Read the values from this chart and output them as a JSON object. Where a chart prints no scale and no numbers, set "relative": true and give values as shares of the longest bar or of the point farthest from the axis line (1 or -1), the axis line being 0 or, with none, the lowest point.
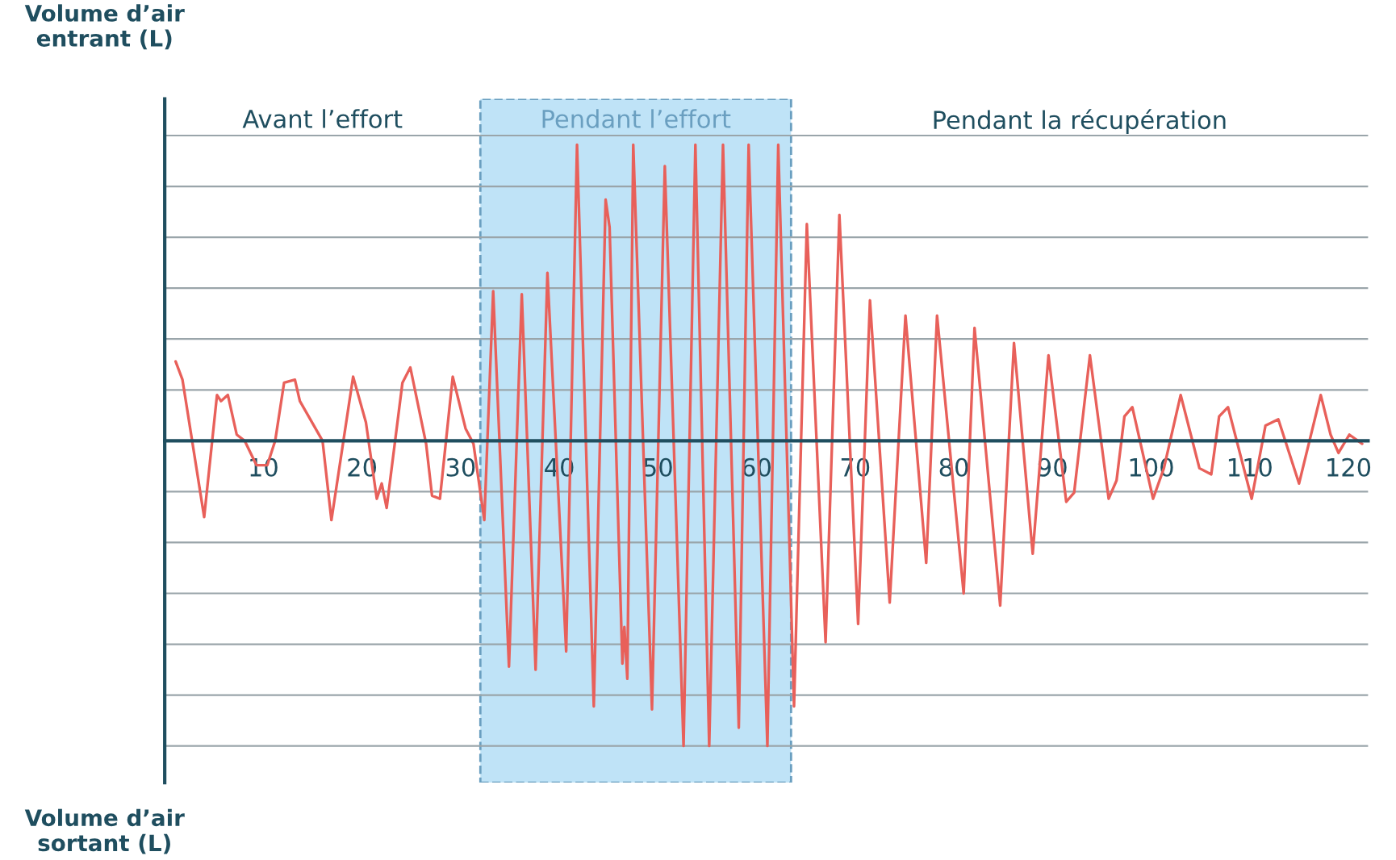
{
  "chart_data": {
    "type": "line",
    "relative": true,
    "ylabel": "Volume d’air\nentrant (L)",
    "annotations": [
      "Avant l’effort",
      "Pendant la récupération",
      "Volume d’air\nsortant (L)"
    ],
    "xlim": [
      0,
      122
    ],
    "xticks": [
      10,
      20,
      30,
      40,
      50,
      60,
      70,
      80,
      90,
      100,
      110,
      120
    ],
    "grid": "y",
    "tick_labels": "x",
    "line_style": "solid",
    "bands": [
      {
        "axis": "x",
        "from": 32,
        "to": 63.5,
        "label": "Pendant l’effort",
        "color": "#bfe3f7"
      }
    ],
    "series": [
      {
        "color": "#e8605a",
        "x": [
          1.1,
          1.8,
          4.0,
          5.3,
          5.7,
          6.4,
          7.3,
          8.1,
          9.3,
          10.4,
          11.2,
          12.1,
          13.2,
          13.7,
          16,
          16.9,
          19.1,
          20.4,
          21.5,
          22,
          22.5,
          24.1,
          24.9,
          26.5,
          27.1,
          27.9,
          29.2,
          30.5,
          31.3,
          32.4,
          33.3,
          34.9,
          36.2,
          37.6,
          38.8,
          40.7,
          41.8,
          43.5,
          44.7,
          45.1,
          46.4,
          46.6,
          46.9,
          47.5,
          49.4,
          50.7,
          52.6,
          53.8,
          55.2,
          56.6,
          58.2,
          59.2,
          61.1,
          62.2,
          63.8,
          65.1,
          67,
          68.4,
          70.3,
          71.5,
          73.5,
          75.1,
          77.2,
          78.3,
          81,
          82.1,
          84.7,
          86.1,
          88,
          89.6,
          91.4,
          92.2,
          93.8,
          95.7,
          96.5,
          97.3,
          98.1,
          100.2,
          101.3,
          103,
          104.9,
          106.1,
          106.9,
          107.8,
          110.2,
          111.6,
          112.9,
          115,
          117.2,
          118.2,
          119,
          120.1,
          121.4
        ],
        "values": [
          0.26,
          0.2,
          -0.25,
          0.15,
          0.13,
          0.15,
          0.02,
          0,
          -0.08,
          -0.08,
          0,
          0.19,
          0.2,
          0.13,
          0,
          -0.26,
          0.21,
          0.06,
          -0.19,
          -0.14,
          -0.22,
          0.19,
          0.24,
          -0.01,
          -0.18,
          -0.19,
          0.21,
          0.04,
          -0.01,
          -0.26,
          0.49,
          -0.74,
          0.48,
          -0.75,
          0.55,
          -0.69,
          0.97,
          -0.87,
          0.79,
          0.7,
          -0.73,
          -0.61,
          -0.78,
          0.97,
          -0.88,
          0.9,
          -1,
          0.97,
          -1,
          0.97,
          -0.94,
          0.97,
          -1,
          0.97,
          -0.87,
          0.71,
          -0.66,
          0.74,
          -0.6,
          0.46,
          -0.53,
          0.41,
          -0.4,
          0.41,
          -0.5,
          0.37,
          -0.54,
          0.32,
          -0.37,
          0.28,
          -0.2,
          -0.17,
          0.28,
          -0.19,
          -0.13,
          0.08,
          0.11,
          -0.19,
          -0.09,
          0.15,
          -0.09,
          -0.11,
          0.08,
          0.11,
          -0.19,
          0.05,
          0.07,
          -0.14,
          0.15,
          0.02,
          -0.04,
          0.02,
          -0.01
        ]
      }
    ]
  }
}
